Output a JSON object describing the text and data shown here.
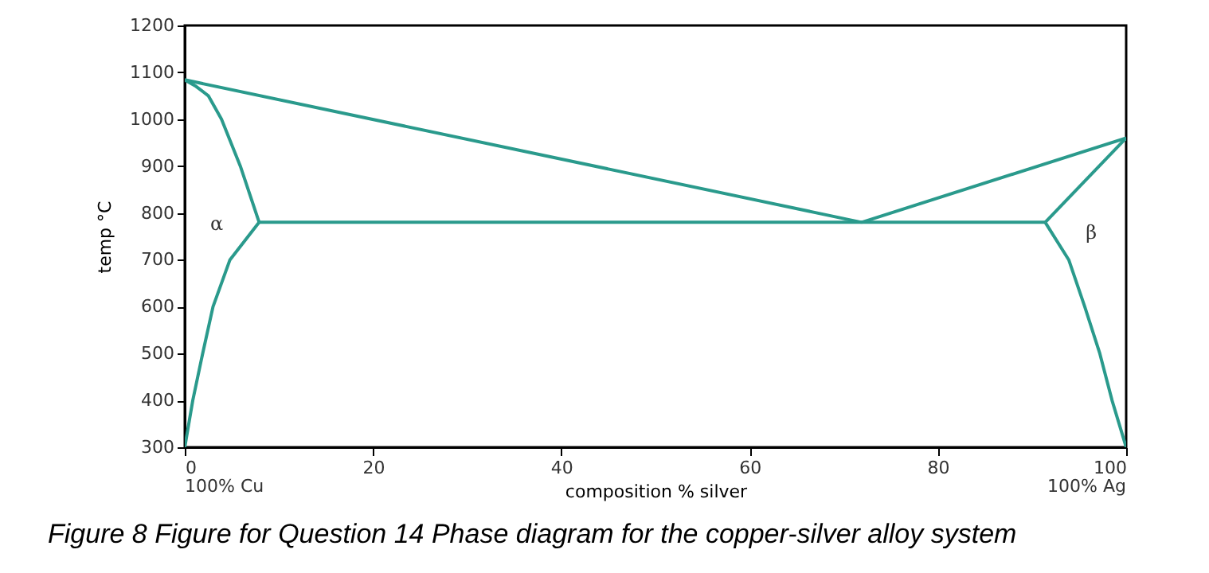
{
  "chart_data": {
    "type": "line",
    "title": "Figure 8 Figure for Question 14 Phase diagram for the copper-silver alloy system",
    "xlabel": "composition % silver",
    "ylabel": "temp °C",
    "xlim": [
      0,
      100
    ],
    "xticks": [
      0,
      20,
      40,
      60,
      80,
      100
    ],
    "ylim": [
      300,
      1200
    ],
    "yticks": [
      300,
      400,
      500,
      600,
      700,
      800,
      900,
      1000,
      1100,
      1200
    ],
    "grid": false,
    "marker": "none",
    "line_style": "solid",
    "series": [
      {
        "color": "#2a9a8c",
        "x": [
          0,
          71.9
        ],
        "values": [
          1084,
          780
        ]
      },
      {
        "color": "#2a9a8c",
        "x": [
          71.9,
          100
        ],
        "values": [
          780,
          960
        ]
      },
      {
        "color": "#2a9a8c",
        "x": [
          7.9,
          91.4
        ],
        "values": [
          780,
          780
        ]
      },
      {
        "color": "#2a9a8c",
        "x": [
          0,
          1.2,
          2.5,
          3.9,
          5.9,
          7.9
        ],
        "values": [
          1084,
          1070,
          1050,
          1000,
          900,
          780
        ]
      },
      {
        "color": "#2a9a8c",
        "x": [
          7.9,
          4.8,
          3.0,
          1.9,
          0.85,
          0
        ],
        "values": [
          780,
          700,
          600,
          500,
          400,
          300
        ]
      },
      {
        "color": "#2a9a8c",
        "x": [
          91.4,
          100
        ],
        "values": [
          780,
          960
        ]
      },
      {
        "color": "#2a9a8c",
        "x": [
          91.4,
          93.9,
          95.6,
          97.2,
          98.5,
          100
        ],
        "values": [
          780,
          700,
          600,
          500,
          400,
          300
        ]
      }
    ],
    "annotations": [
      "α",
      "β",
      "100% Cu",
      "100% Ag"
    ]
  }
}
